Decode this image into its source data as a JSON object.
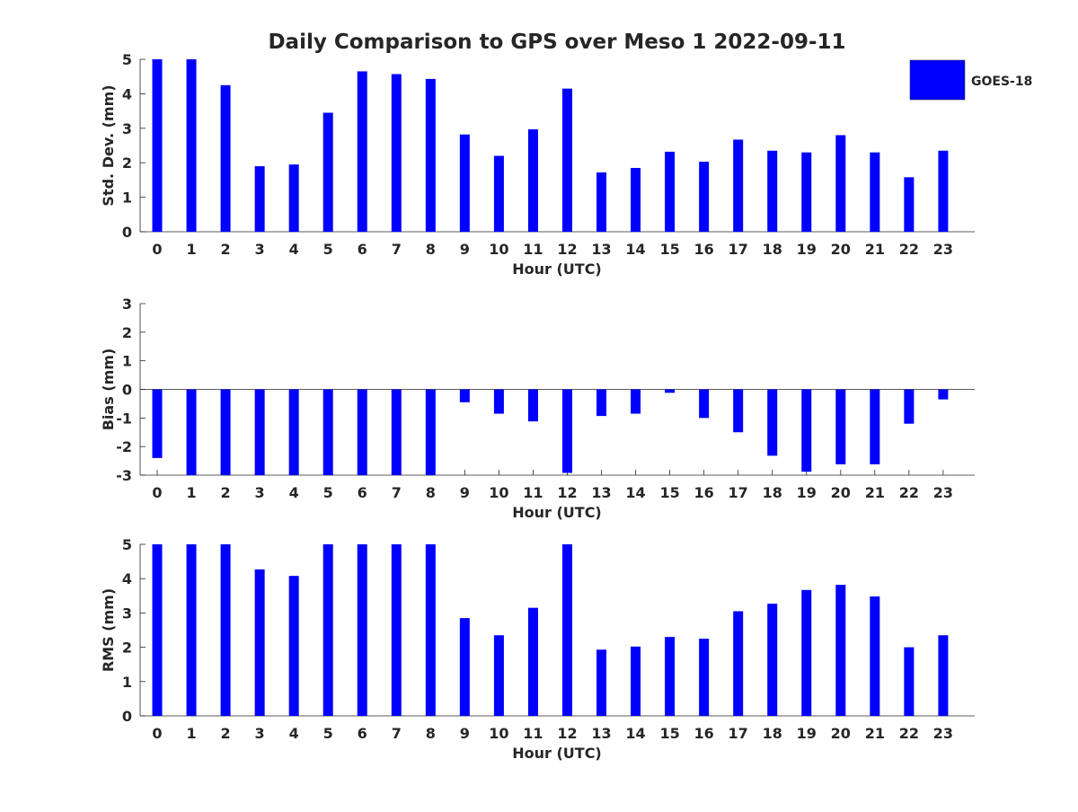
{
  "title": "Daily Comparison to GPS over Meso 1 2022-09-11",
  "legend": {
    "label": "GOES-18",
    "color": "#0000ff",
    "placement": "top-right"
  },
  "chart_data": [
    {
      "type": "bar",
      "name": "std-dev",
      "title": "Daily Comparison to GPS over Meso 1 2022-09-11",
      "xlabel": "Hour (UTC)",
      "ylabel": "Std. Dev. (mm)",
      "ylim": [
        0,
        5
      ],
      "yticks": [
        "0",
        "1",
        "2",
        "3",
        "4",
        "5"
      ],
      "categories": [
        "0",
        "1",
        "2",
        "3",
        "4",
        "5",
        "6",
        "7",
        "8",
        "9",
        "10",
        "11",
        "12",
        "13",
        "14",
        "15",
        "16",
        "17",
        "18",
        "19",
        "20",
        "21",
        "22",
        "23"
      ],
      "series": [
        {
          "name": "GOES-18",
          "color": "#0000ff",
          "values": [
            5.0,
            5.0,
            4.25,
            1.9,
            1.95,
            3.45,
            4.65,
            4.57,
            4.43,
            2.82,
            2.2,
            2.97,
            4.15,
            1.72,
            1.85,
            2.32,
            2.03,
            2.67,
            2.35,
            2.3,
            2.8,
            2.3,
            1.58,
            2.35
          ]
        }
      ]
    },
    {
      "type": "bar",
      "name": "bias",
      "xlabel": "Hour (UTC)",
      "ylabel": "Bias (mm)",
      "ylim": [
        -3,
        3
      ],
      "yticks": [
        "-3",
        "-2",
        "-1",
        "0",
        "1",
        "2",
        "3"
      ],
      "categories": [
        "0",
        "1",
        "2",
        "3",
        "4",
        "5",
        "6",
        "7",
        "8",
        "9",
        "10",
        "11",
        "12",
        "13",
        "14",
        "15",
        "16",
        "17",
        "18",
        "19",
        "20",
        "21",
        "22",
        "23"
      ],
      "series": [
        {
          "name": "GOES-18",
          "color": "#0000ff",
          "values": [
            -2.4,
            -3.0,
            -3.0,
            -3.0,
            -3.0,
            -3.0,
            -3.0,
            -3.0,
            -3.0,
            -0.45,
            -0.85,
            -1.12,
            -2.92,
            -0.93,
            -0.85,
            -0.12,
            -1.0,
            -1.5,
            -2.32,
            -2.88,
            -2.62,
            -2.62,
            -1.2,
            -0.35
          ]
        }
      ]
    },
    {
      "type": "bar",
      "name": "rms",
      "xlabel": "Hour (UTC)",
      "ylabel": "RMS (mm)",
      "ylim": [
        0,
        5
      ],
      "yticks": [
        "0",
        "1",
        "2",
        "3",
        "4",
        "5"
      ],
      "categories": [
        "0",
        "1",
        "2",
        "3",
        "4",
        "5",
        "6",
        "7",
        "8",
        "9",
        "10",
        "11",
        "12",
        "13",
        "14",
        "15",
        "16",
        "17",
        "18",
        "19",
        "20",
        "21",
        "22",
        "23"
      ],
      "series": [
        {
          "name": "GOES-18",
          "color": "#0000ff",
          "values": [
            5.0,
            5.0,
            5.0,
            4.27,
            4.08,
            5.0,
            5.0,
            5.0,
            5.0,
            2.85,
            2.35,
            3.15,
            5.0,
            1.93,
            2.02,
            2.3,
            2.25,
            3.05,
            3.27,
            3.67,
            3.82,
            3.48,
            2.0,
            2.35
          ]
        }
      ]
    }
  ]
}
